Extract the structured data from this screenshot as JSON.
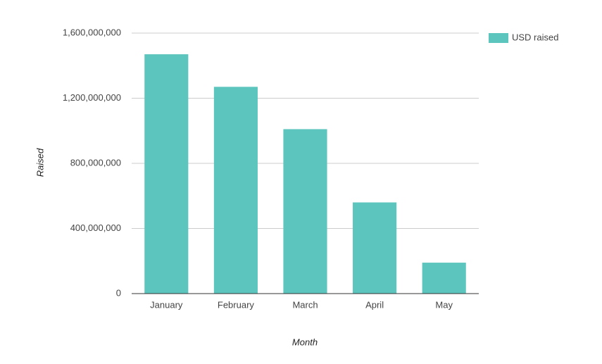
{
  "chart_data": {
    "type": "bar",
    "x_label": "Month",
    "y_label": "Raised",
    "categories": [
      "January",
      "February",
      "March",
      "April",
      "May"
    ],
    "series": [
      {
        "name": "USD raised",
        "color": "#5cc5bd",
        "values": [
          1470000000,
          1270000000,
          1010000000,
          560000000,
          190000000
        ]
      }
    ],
    "ylim": [
      0,
      1600000000
    ],
    "yticks": [
      0,
      {
        "value": 400000000,
        "label": "400,000,000"
      },
      {
        "value": 800000000,
        "label": "800,000,000"
      },
      {
        "value": 1200000000,
        "label": "1,200,000,000"
      },
      {
        "value": 1600000000,
        "label": "1,600,000,000"
      }
    ],
    "grid": true,
    "legend": "right"
  }
}
